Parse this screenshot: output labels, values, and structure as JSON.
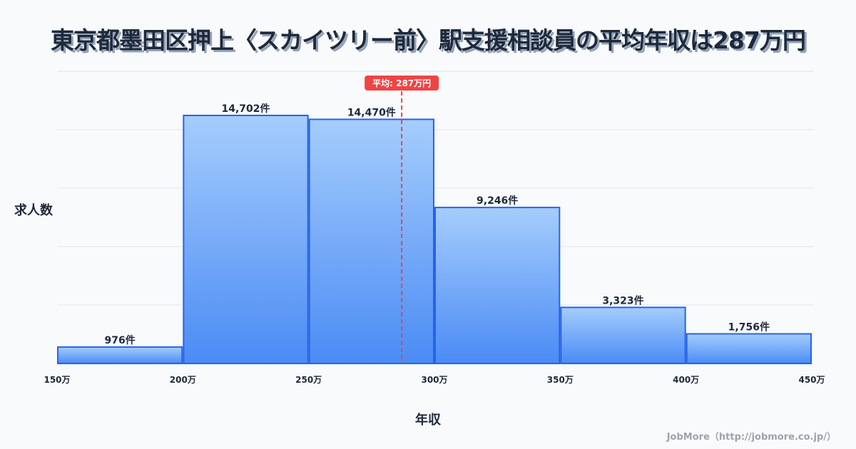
{
  "title": "東京都墨田区押上〈スカイツリー前〉駅支援相談員の平均年収は287万円",
  "footer": "JobMore（http://jobmore.co.jp/）",
  "colors": {
    "bar_top": "#a5cdfc",
    "bar_bottom": "#4b8bf5",
    "bar_stroke": "#2563eb",
    "mean_line": "#dc4b4b",
    "badge": "#ef4444",
    "text": "#1e293b"
  },
  "chart_data": {
    "type": "bar",
    "title": "東京都墨田区押上〈スカイツリー前〉駅支援相談員の平均年収は287万円",
    "xlabel": "年収",
    "ylabel": "求人数",
    "bins": [
      [
        150,
        200
      ],
      [
        200,
        250
      ],
      [
        250,
        300
      ],
      [
        300,
        350
      ],
      [
        350,
        400
      ],
      [
        400,
        450
      ]
    ],
    "values": [
      976,
      14702,
      14470,
      9246,
      3323,
      1756
    ],
    "value_labels": [
      "976件",
      "14,702件",
      "14,470件",
      "9,246件",
      "3,323件",
      "1,756件"
    ],
    "x_ticks": [
      150,
      200,
      250,
      300,
      350,
      400,
      450
    ],
    "x_tick_labels": [
      "150万",
      "200万",
      "250万",
      "300万",
      "350万",
      "400万",
      "450万"
    ],
    "xlim": [
      150,
      450
    ],
    "ylim": [
      0,
      17320
    ],
    "grid": true,
    "mean": 287,
    "mean_label": "平均: 287万円"
  }
}
